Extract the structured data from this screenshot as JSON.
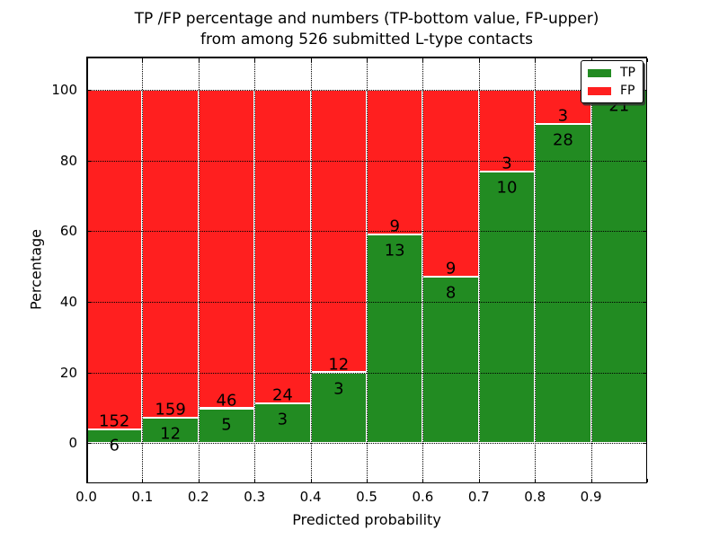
{
  "title": {
    "line1": "TP /FP percentage and numbers (TP-bottom value, FP-upper)",
    "line2": "from among 526 submitted L-type contacts"
  },
  "axes": {
    "xlabel": "Predicted probability",
    "ylabel": "Percentage",
    "x_tick_labels": [
      "0.0",
      "0.1",
      "0.2",
      "0.3",
      "0.4",
      "0.5",
      "0.6",
      "0.7",
      "0.8",
      "0.9"
    ],
    "y_tick_labels": [
      "0",
      "20",
      "40",
      "60",
      "80",
      "100"
    ]
  },
  "legend": {
    "entries": [
      {
        "label": "TP",
        "color": "#228b22"
      },
      {
        "label": "FP",
        "color": "#ff1f1f"
      }
    ]
  },
  "chart_data": {
    "type": "bar",
    "subtype": "stacked-100-percent",
    "title": "TP /FP percentage and numbers (TP-bottom value, FP-upper) from among 526 submitted L-type contacts",
    "xlabel": "Predicted probability",
    "ylabel": "Percentage",
    "total_submitted_contacts": 526,
    "bin_width": 0.1,
    "bin_starts": [
      0.0,
      0.1,
      0.2,
      0.3,
      0.4,
      0.5,
      0.6,
      0.7,
      0.8,
      0.9
    ],
    "series": [
      {
        "name": "TP",
        "color": "#228b22",
        "counts": [
          6,
          12,
          5,
          3,
          3,
          13,
          8,
          10,
          28,
          21
        ]
      },
      {
        "name": "FP",
        "color": "#ff1f1f",
        "counts": [
          152,
          159,
          46,
          24,
          12,
          9,
          9,
          3,
          3,
          0
        ]
      }
    ],
    "tp_percent": [
      3.8,
      7.0,
      9.8,
      11.1,
      20.0,
      59.1,
      47.1,
      76.9,
      90.3,
      100.0
    ],
    "y_ticks": [
      0,
      20,
      40,
      60,
      80,
      100
    ],
    "ylim": [
      -11.5,
      109.5
    ],
    "xlim": [
      0.0,
      1.0
    ],
    "grid": "dotted",
    "legend_position": "upper-right",
    "fp_label_hidden_bins": [
      9
    ]
  }
}
